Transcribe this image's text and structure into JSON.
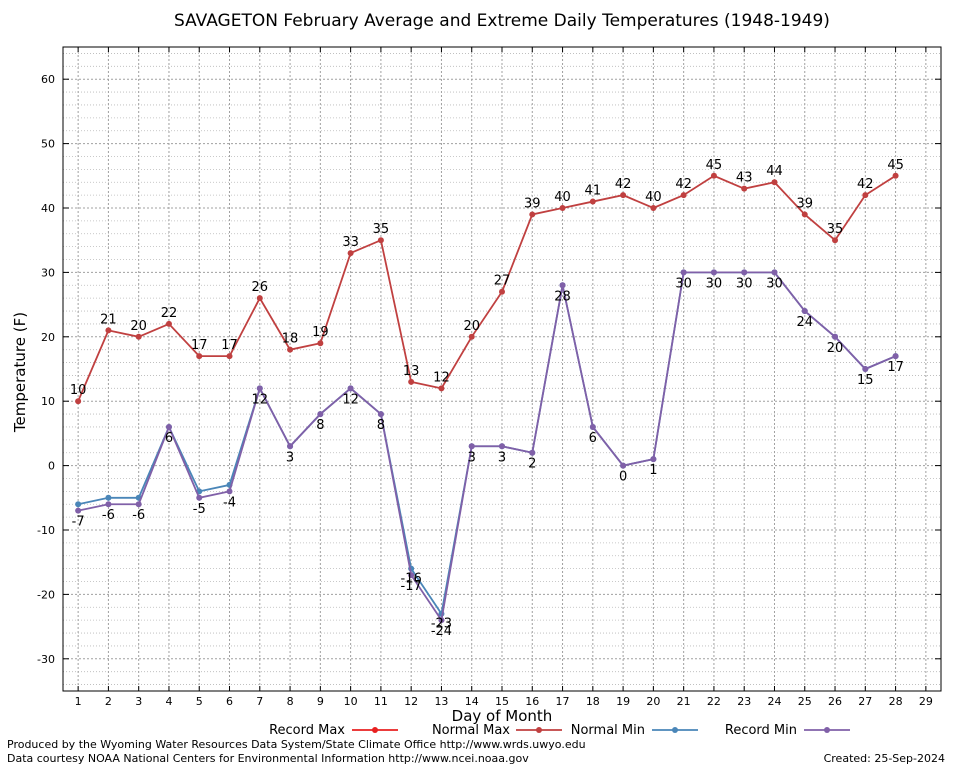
{
  "chart_data": {
    "type": "line",
    "title": "SAVAGETON February Average and Extreme Daily Temperatures (1948-1949)",
    "xlabel": "Day of Month",
    "ylabel": "Temperature (F)",
    "xlim": [
      0.5,
      29.5
    ],
    "ylim": [
      -35,
      65
    ],
    "x_ticks": [
      1,
      2,
      3,
      4,
      5,
      6,
      7,
      8,
      9,
      10,
      11,
      12,
      13,
      14,
      15,
      16,
      17,
      18,
      19,
      20,
      21,
      22,
      23,
      24,
      25,
      26,
      27,
      28,
      29
    ],
    "y_ticks": [
      -30,
      -20,
      -10,
      0,
      10,
      20,
      30,
      40,
      50,
      60
    ],
    "grid": true,
    "legend_position": "bottom",
    "days": [
      1,
      2,
      3,
      4,
      5,
      6,
      7,
      8,
      9,
      10,
      11,
      12,
      13,
      14,
      15,
      16,
      17,
      18,
      19,
      20,
      21,
      22,
      23,
      24,
      25,
      26,
      27,
      28
    ],
    "series": [
      {
        "name": "Record Max",
        "color": "#e82020",
        "values": []
      },
      {
        "name": "Normal Max",
        "color": "#c04040",
        "values": [
          10,
          21,
          20,
          22,
          17,
          17,
          26,
          18,
          19,
          33,
          35,
          13,
          12,
          20,
          27,
          39,
          40,
          41,
          42,
          40,
          42,
          45,
          43,
          44,
          39,
          35,
          42,
          45
        ],
        "labels": [
          "10",
          "21",
          "20",
          "22",
          "17",
          "17",
          "26",
          "18",
          "19",
          "33",
          "35",
          "13",
          "12",
          "20",
          "27",
          "39",
          "40",
          "41",
          "42",
          "40",
          "42",
          "45",
          "43",
          "44",
          "39",
          "35",
          "42",
          "45"
        ]
      },
      {
        "name": "Normal Min",
        "color": "#4a86b8",
        "values": [
          -6,
          -5,
          -5,
          6,
          -4,
          -3,
          12,
          3,
          8,
          12,
          8,
          -16,
          -23,
          3,
          3,
          2,
          28,
          6,
          0,
          1,
          30,
          30,
          30,
          30,
          24,
          20,
          15,
          17
        ],
        "labels": [
          "",
          "",
          "",
          "",
          "",
          "",
          "",
          "",
          "",
          "",
          "",
          "-16",
          "-23",
          "",
          "",
          "",
          "",
          "",
          "",
          "",
          "",
          "",
          "",
          "",
          "",
          "",
          "",
          ""
        ]
      },
      {
        "name": "Record Min",
        "color": "#8060a8",
        "values": [
          -7,
          -6,
          -6,
          6,
          -5,
          -4,
          12,
          3,
          8,
          12,
          8,
          -17,
          -24,
          3,
          3,
          2,
          28,
          6,
          0,
          1,
          30,
          30,
          30,
          30,
          24,
          20,
          15,
          17
        ],
        "labels": [
          "-7",
          "-6",
          "-6",
          "6",
          "-5",
          "-4",
          "12",
          "3",
          "8",
          "12",
          "8",
          "-17",
          "-24",
          "3",
          "3",
          "2",
          "28",
          "6",
          "0",
          "1",
          "30",
          "30",
          "30",
          "30",
          "24",
          "20",
          "15",
          "17"
        ]
      }
    ]
  },
  "footer": {
    "produced_by": "Produced by the Wyoming Water Resources Data System/State Climate Office http://www.wrds.uwyo.edu",
    "data_courtesy": "Data courtesy NOAA National Centers for Environmental Information http://www.ncei.noaa.gov",
    "created": "Created:  25-Sep-2024"
  }
}
